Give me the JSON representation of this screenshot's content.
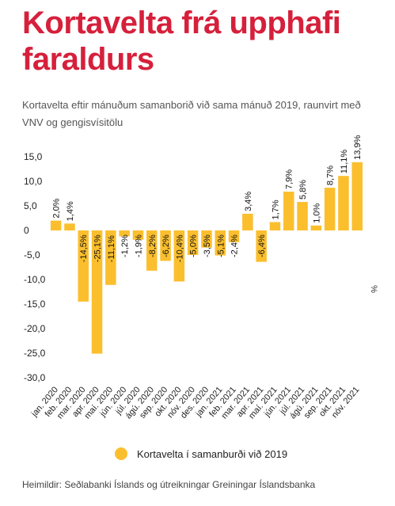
{
  "header": {
    "title": "Kortavelta frá upphafi faraldurs",
    "subtitle": "Kortavelta eftir mánuðum samanborið við sama mánuð 2019, raunvirt með VNV og gengisvísitölu"
  },
  "footer": {
    "source": "Heimildir: Seðlabanki Íslands og útreikningar Greiningar Íslandsbanka"
  },
  "colors": {
    "title": "#d6203b",
    "bar": "#fbbf2e",
    "text": "#1a1a1a"
  },
  "chart_data": {
    "type": "bar",
    "title": "",
    "xlabel": "",
    "ylabel": "%",
    "ylim": [
      -30,
      15
    ],
    "yticks": [
      "15,0",
      "10,0",
      "5,0",
      "0",
      "-5,0",
      "-10,0",
      "-15,0",
      "-20,0",
      "-25,0",
      "-30,0"
    ],
    "grid": false,
    "legend_position": "bottom",
    "categories": [
      "jan. 2020",
      "feb. 2020",
      "mar. 2020",
      "apr. 2020",
      "maí. 2020",
      "jún. 2020",
      "júl. 2020",
      "ágú. 2020",
      "sep. 2020",
      "okt. 2020",
      "nóv. 2020",
      "des. 2020",
      "jan. 2021",
      "feb. 2021",
      "mar. 2021",
      "apr. 2021",
      "maí. 2021",
      "jún. 2021",
      "júl. 2021",
      "ágú. 2021",
      "sep. 2021",
      "okt. 2021",
      "nóv. 2021"
    ],
    "series": [
      {
        "name": "Kortavelta í samanburði við 2019",
        "values": [
          2.0,
          1.4,
          -14.5,
          -25.1,
          -11.1,
          -1.2,
          -1.9,
          -8.2,
          -6.2,
          -10.4,
          -5.0,
          -3.5,
          -5.1,
          -2.4,
          3.4,
          -6.4,
          1.7,
          7.9,
          5.8,
          1.0,
          8.7,
          11.1,
          13.9
        ],
        "labels": [
          "2,0%",
          "1,4%",
          "-14,5%",
          "-25,1%",
          "-11,1%",
          "-1,2%",
          "-1,9%",
          "-8,2%",
          "-6,2%",
          "-10,4%",
          "-5,0%",
          "-3,5%",
          "-5,1%",
          "-2,4%",
          "3,4%",
          "-6,4%",
          "1,7%",
          "7,9%",
          "5,8%",
          "1,0%",
          "8,7%",
          "11,1%",
          "13,9%"
        ]
      }
    ]
  }
}
